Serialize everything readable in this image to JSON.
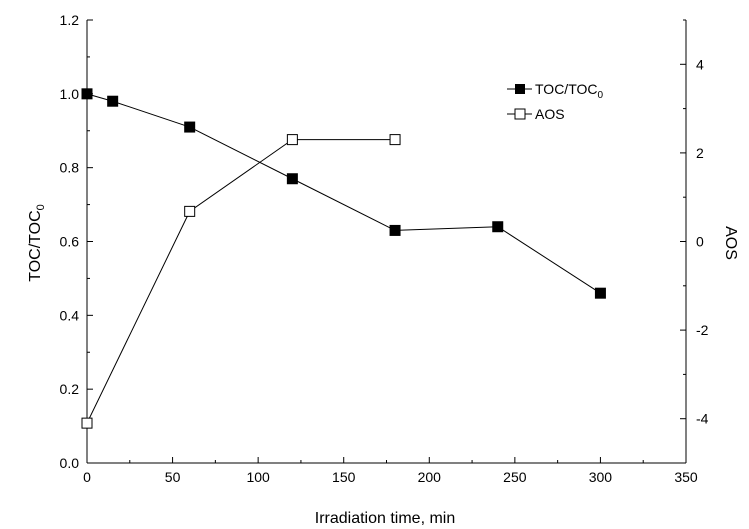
{
  "chart_data": {
    "type": "line",
    "title": "",
    "xlabel": "Irradiation time, min",
    "ylabel_left_main": "TOC/TOC",
    "ylabel_left_sub": "0",
    "ylabel_right": "AOS",
    "xlim": [
      0,
      350
    ],
    "ylim_left": [
      0,
      1.2
    ],
    "ylim_right": [
      -5,
      5
    ],
    "x_ticks": [
      0,
      50,
      100,
      150,
      200,
      250,
      300,
      350
    ],
    "y_left_ticks": [
      0.0,
      0.2,
      0.4,
      0.6,
      0.8,
      1.0,
      1.2
    ],
    "y_right_ticks": [
      -4,
      -2,
      0,
      2,
      4
    ],
    "x_tick_labels": [
      "0",
      "50",
      "100",
      "150",
      "200",
      "250",
      "300",
      "350"
    ],
    "y_left_tick_labels": [
      "0.0",
      "0.2",
      "0.4",
      "0.6",
      "0.8",
      "1.0",
      "1.2"
    ],
    "y_right_tick_labels": [
      "-4",
      "-2",
      "0",
      "2",
      "4"
    ],
    "grid": false,
    "legend_position": "top-right",
    "series": [
      {
        "name_main": "TOC/TOC",
        "name_sub": "0",
        "axis": "left",
        "marker": "filled-square",
        "x": [
          0,
          15,
          60,
          120,
          180,
          240,
          300
        ],
        "y": [
          1.0,
          0.98,
          0.91,
          0.77,
          0.63,
          0.64,
          0.46
        ]
      },
      {
        "name_main": "AOS",
        "name_sub": "",
        "axis": "right",
        "marker": "open-square",
        "x": [
          0,
          60,
          120,
          180
        ],
        "y": [
          -4.1,
          0.68,
          2.3,
          2.3
        ]
      }
    ]
  }
}
